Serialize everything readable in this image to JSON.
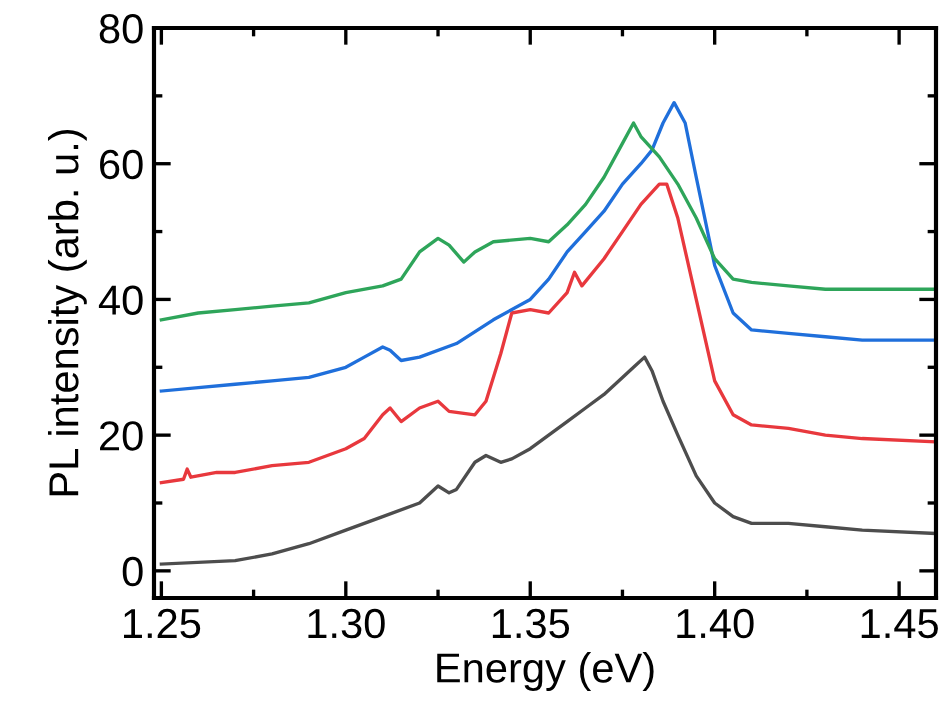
{
  "chart_data": {
    "type": "line",
    "xlabel": "Energy (eV)",
    "ylabel": "PL intensity (arb. u.)",
    "xlim": [
      1.248,
      1.46
    ],
    "xticks": [
      {
        "value": 1.25,
        "label": "1.25"
      },
      {
        "value": 1.3,
        "label": "1.30"
      },
      {
        "value": 1.35,
        "label": "1.35"
      },
      {
        "value": 1.4,
        "label": "1.40"
      },
      {
        "value": 1.45,
        "label": "1.45"
      }
    ],
    "ylim": [
      -4,
      80
    ],
    "yticks": [
      0,
      20,
      40,
      60,
      80
    ],
    "grid": false,
    "marker": "none",
    "line_style": "solid",
    "series": [
      {
        "color": "#4d4d4d",
        "x": [
          1.25,
          1.27,
          1.28,
          1.29,
          1.3,
          1.31,
          1.32,
          1.325,
          1.328,
          1.33,
          1.335,
          1.338,
          1.342,
          1.345,
          1.35,
          1.355,
          1.36,
          1.365,
          1.37,
          1.375,
          1.378,
          1.381,
          1.383,
          1.386,
          1.39,
          1.395,
          1.4,
          1.405,
          1.41,
          1.42,
          1.43,
          1.44,
          1.46
        ],
        "values": [
          1,
          1.5,
          2.5,
          4,
          6,
          8,
          10,
          12.5,
          11.5,
          12,
          16,
          17,
          16,
          16.5,
          18,
          20,
          22,
          24,
          26,
          28.5,
          30,
          31.5,
          29.5,
          25,
          20,
          14,
          10,
          8,
          7,
          7,
          6.5,
          6,
          5.5
        ]
      },
      {
        "color": "#e8383d",
        "x": [
          1.25,
          1.256,
          1.257,
          1.258,
          1.265,
          1.27,
          1.28,
          1.29,
          1.3,
          1.305,
          1.31,
          1.312,
          1.315,
          1.32,
          1.325,
          1.328,
          1.335,
          1.338,
          1.342,
          1.345,
          1.35,
          1.355,
          1.36,
          1.362,
          1.364,
          1.37,
          1.375,
          1.38,
          1.385,
          1.387,
          1.39,
          1.395,
          1.4,
          1.405,
          1.41,
          1.42,
          1.43,
          1.44,
          1.46
        ],
        "values": [
          13,
          13.5,
          15,
          13.8,
          14.5,
          14.5,
          15.5,
          16,
          18,
          19.5,
          23,
          24,
          22,
          24,
          25,
          23.5,
          23,
          25,
          32,
          38,
          38.5,
          38,
          41,
          44,
          42,
          46,
          50,
          54,
          57,
          57,
          52,
          40,
          28,
          23,
          21.5,
          21,
          20,
          19.5,
          19
        ]
      },
      {
        "color": "#1f6fdb",
        "x": [
          1.25,
          1.26,
          1.27,
          1.28,
          1.29,
          1.3,
          1.305,
          1.31,
          1.312,
          1.315,
          1.32,
          1.33,
          1.34,
          1.35,
          1.355,
          1.36,
          1.365,
          1.37,
          1.375,
          1.38,
          1.383,
          1.386,
          1.389,
          1.392,
          1.395,
          1.4,
          1.405,
          1.41,
          1.42,
          1.43,
          1.44,
          1.45,
          1.46
        ],
        "values": [
          26.5,
          27,
          27.5,
          28,
          28.5,
          30,
          31.5,
          33,
          32.5,
          31,
          31.5,
          33.5,
          37,
          40,
          43,
          47,
          50,
          53,
          57,
          60,
          62,
          66,
          69,
          66,
          58,
          45,
          38,
          35.5,
          35,
          34.5,
          34,
          34,
          34
        ]
      },
      {
        "color": "#2ea55a",
        "x": [
          1.25,
          1.26,
          1.27,
          1.28,
          1.29,
          1.3,
          1.31,
          1.315,
          1.32,
          1.325,
          1.328,
          1.332,
          1.335,
          1.34,
          1.35,
          1.355,
          1.36,
          1.365,
          1.37,
          1.375,
          1.378,
          1.38,
          1.385,
          1.39,
          1.395,
          1.4,
          1.405,
          1.41,
          1.42,
          1.43,
          1.44,
          1.46
        ],
        "values": [
          37,
          38,
          38.5,
          39,
          39.5,
          41,
          42,
          43,
          47,
          49,
          48,
          45.5,
          47,
          48.5,
          49,
          48.5,
          51,
          54,
          58,
          63,
          66,
          64,
          61,
          57,
          52,
          46,
          43,
          42.5,
          42,
          41.5,
          41.5,
          41.5
        ]
      }
    ]
  }
}
